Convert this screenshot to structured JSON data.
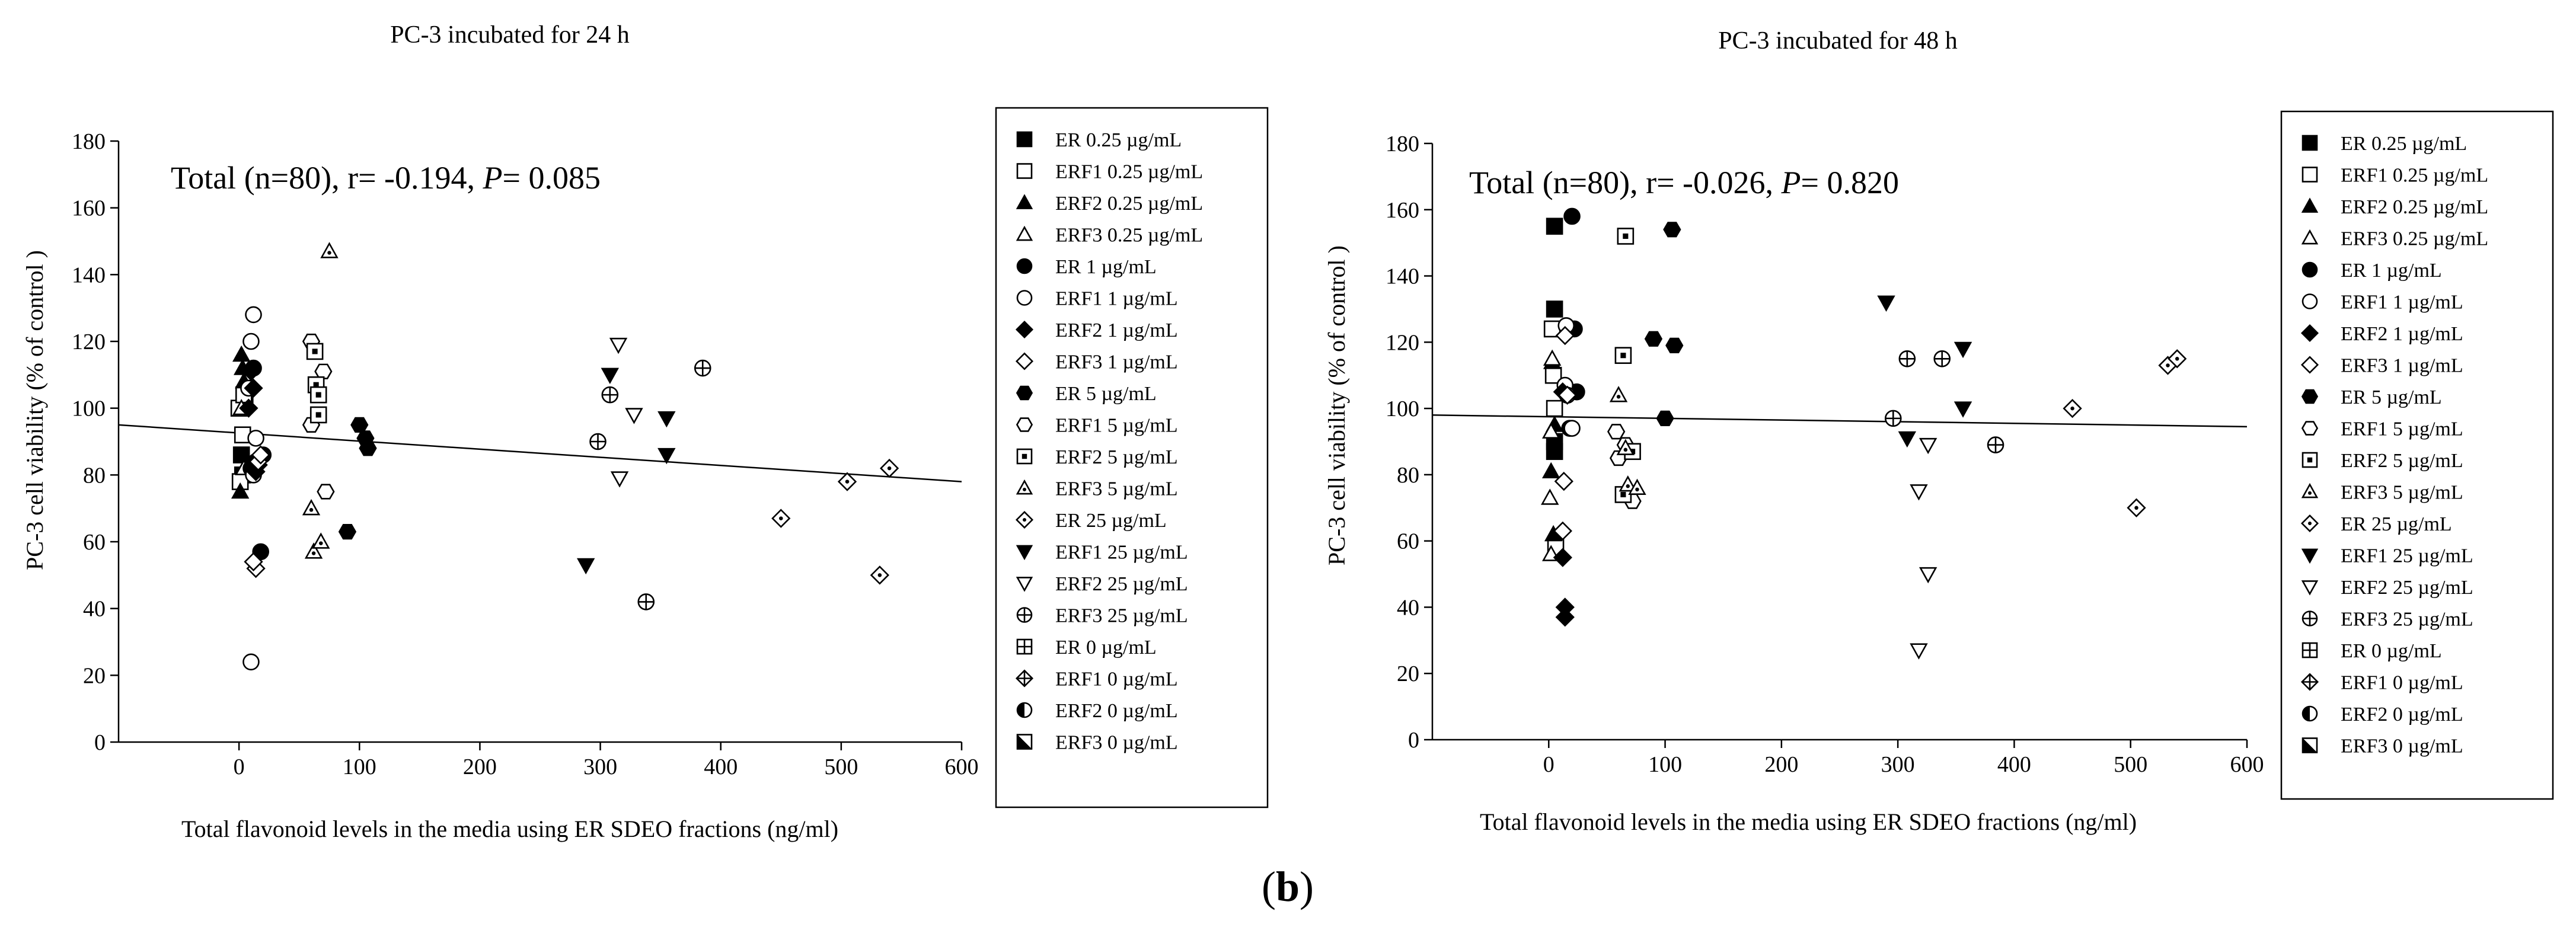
{
  "figure_label": "(b)",
  "figure_label_parts": {
    "open": "(",
    "letter": "b",
    "close": ")"
  },
  "legend_items": [
    {
      "label": "ER 0.25 µg/mL",
      "marker": "square",
      "fill": "filled"
    },
    {
      "label": "ERF1 0.25 µg/mL",
      "marker": "square",
      "fill": "open"
    },
    {
      "label": "ERF2 0.25 µg/mL",
      "marker": "triangle-up",
      "fill": "filled"
    },
    {
      "label": "ERF3 0.25 µg/mL",
      "marker": "triangle-up",
      "fill": "open"
    },
    {
      "label": "ER 1 µg/mL",
      "marker": "circle",
      "fill": "filled"
    },
    {
      "label": "ERF1 1 µg/mL",
      "marker": "circle",
      "fill": "open"
    },
    {
      "label": "ERF2 1 µg/mL",
      "marker": "diamond",
      "fill": "filled"
    },
    {
      "label": "ERF3 1 µg/mL",
      "marker": "diamond",
      "fill": "open"
    },
    {
      "label": "ER 5 µg/mL",
      "marker": "hexagon",
      "fill": "filled"
    },
    {
      "label": "ERF1 5 µg/mL",
      "marker": "hexagon",
      "fill": "open"
    },
    {
      "label": "ERF2 5 µg/mL",
      "marker": "square-dot",
      "fill": "open"
    },
    {
      "label": "ERF3 5 µg/mL",
      "marker": "triangle-dot",
      "fill": "open"
    },
    {
      "label": "ER 25 µg/mL",
      "marker": "diamond-dot",
      "fill": "open"
    },
    {
      "label": "ERF1 25 µg/mL",
      "marker": "triangle-down",
      "fill": "filled"
    },
    {
      "label": "ERF2 25 µg/mL",
      "marker": "triangle-down",
      "fill": "open"
    },
    {
      "label": "ERF3 25 µg/mL",
      "marker": "circle-plus",
      "fill": "open"
    },
    {
      "label": "ER 0 µg/mL",
      "marker": "square-plus",
      "fill": "open"
    },
    {
      "label": "ERF1 0 µg/mL",
      "marker": "diamond-plus",
      "fill": "open"
    },
    {
      "label": "ERF2 0 µg/mL",
      "marker": "circle-half",
      "fill": "half"
    },
    {
      "label": "ERF3 0 µg/mL",
      "marker": "square-half",
      "fill": "half"
    }
  ],
  "chart_data": [
    {
      "type": "scatter",
      "title": "PC-3 incubated for 24 h",
      "xlabel": "Total flavonoid levels in the media using ER SDEO fractions (ng/ml)",
      "ylabel": "PC-3 cell viability (% of control )",
      "xlim": [
        -100,
        600
      ],
      "ylim": [
        0,
        180
      ],
      "xticks": [
        0,
        100,
        200,
        300,
        400,
        500,
        600
      ],
      "yticks": [
        0,
        20,
        40,
        60,
        80,
        100,
        120,
        140,
        160,
        180
      ],
      "annotation": {
        "prefix": "Total (n=80), r= -0.194, ",
        "p_symbol": "P",
        "suffix": "= 0.085"
      },
      "regression": {
        "x": [
          -100,
          600
        ],
        "y": [
          95,
          78
        ]
      },
      "series": [
        {
          "name": "ER 0.25 µg/mL",
          "points": [
            [
              2,
              86
            ],
            [
              3,
              80
            ],
            [
              5,
              104
            ]
          ]
        },
        {
          "name": "ERF1 0.25 µg/mL",
          "points": [
            [
              0,
              100
            ],
            [
              3,
              92
            ],
            [
              1,
              78
            ],
            [
              4,
              104
            ]
          ]
        },
        {
          "name": "ERF2 0.25 µg/mL",
          "points": [
            [
              2,
              116
            ],
            [
              3,
              112
            ],
            [
              1,
              75
            ],
            [
              4,
              108
            ]
          ]
        },
        {
          "name": "ERF3 0.25 µg/mL",
          "points": [
            [
              2,
              100
            ],
            [
              4,
              82
            ]
          ]
        },
        {
          "name": "ER 1 µg/mL",
          "points": [
            [
              12,
              112
            ],
            [
              14,
              84
            ],
            [
              18,
              57
            ],
            [
              20,
              86
            ],
            [
              10,
              82
            ]
          ]
        },
        {
          "name": "ERF1 1 µg/mL",
          "points": [
            [
              12,
              128
            ],
            [
              10,
              120
            ],
            [
              8,
              106
            ],
            [
              14,
              91
            ],
            [
              12,
              80
            ],
            [
              10,
              24
            ]
          ]
        },
        {
          "name": "ERF2 1 µg/mL",
          "points": [
            [
              10,
              111
            ],
            [
              12,
              106
            ],
            [
              14,
              81
            ],
            [
              16,
              83
            ],
            [
              8,
              100
            ]
          ]
        },
        {
          "name": "ERF3 1 µg/mL",
          "points": [
            [
              14,
              52
            ],
            [
              12,
              54
            ],
            [
              16,
              84
            ],
            [
              18,
              86
            ]
          ]
        },
        {
          "name": "ER 5 µg/mL",
          "points": [
            [
              100,
              95
            ],
            [
              105,
              91
            ],
            [
              107,
              88
            ],
            [
              90,
              63
            ]
          ]
        },
        {
          "name": "ERF1 5 µg/mL",
          "points": [
            [
              60,
              120
            ],
            [
              60,
              95
            ],
            [
              70,
              111
            ],
            [
              72,
              75
            ]
          ]
        },
        {
          "name": "ERF2 5 µg/mL",
          "points": [
            [
              63,
              117
            ],
            [
              64,
              107
            ],
            [
              66,
              104
            ],
            [
              66,
              98
            ]
          ]
        },
        {
          "name": "ERF3 5 µg/mL",
          "points": [
            [
              75,
              147
            ],
            [
              60,
              70
            ],
            [
              62,
              57
            ],
            [
              68,
              60
            ]
          ]
        },
        {
          "name": "ER 25 µg/mL",
          "points": [
            [
              450,
              67
            ],
            [
              505,
              78
            ],
            [
              540,
              82
            ],
            [
              532,
              50
            ]
          ]
        },
        {
          "name": "ERF1 25 µg/mL",
          "points": [
            [
              308,
              110
            ],
            [
              355,
              97
            ],
            [
              355,
              86
            ],
            [
              288,
              53
            ]
          ]
        },
        {
          "name": "ERF2 25 µg/mL",
          "points": [
            [
              315,
              119
            ],
            [
              328,
              98
            ],
            [
              316,
              79
            ]
          ]
        },
        {
          "name": "ERF3 25 µg/mL",
          "points": [
            [
              385,
              112
            ],
            [
              308,
              104
            ],
            [
              298,
              90
            ],
            [
              338,
              42
            ]
          ]
        }
      ]
    },
    {
      "type": "scatter",
      "title": "PC-3 incubated for 48 h",
      "xlabel": "Total flavonoid levels in the media using ER SDEO fractions (ng/ml)",
      "ylabel": "PC-3 cell viability (% of control )",
      "xlim": [
        -100,
        600
      ],
      "ylim": [
        0,
        180
      ],
      "xticks": [
        0,
        100,
        200,
        300,
        400,
        500,
        600
      ],
      "yticks": [
        0,
        20,
        40,
        60,
        80,
        100,
        120,
        140,
        160,
        180
      ],
      "annotation": {
        "prefix": "Total (n=80), r= -0.026, ",
        "p_symbol": "P",
        "suffix": "= 0.820"
      },
      "regression": {
        "x": [
          -100,
          600
        ],
        "y": [
          98,
          94.5
        ]
      },
      "series": [
        {
          "name": "ER 0.25 µg/mL",
          "points": [
            [
              5,
              155
            ],
            [
              5,
              130
            ],
            [
              5,
              90
            ],
            [
              5,
              87
            ]
          ]
        },
        {
          "name": "ERF1 0.25 µg/mL",
          "points": [
            [
              3,
              124
            ],
            [
              4,
              110
            ],
            [
              5,
              100
            ],
            [
              6,
              58
            ]
          ]
        },
        {
          "name": "ERF2 0.25 µg/mL",
          "points": [
            [
              3,
              114
            ],
            [
              2,
              81
            ],
            [
              4,
              62
            ],
            [
              5,
              95
            ]
          ]
        },
        {
          "name": "ERF3 0.25 µg/mL",
          "points": [
            [
              3,
              115
            ],
            [
              2,
              93
            ],
            [
              1,
              73
            ],
            [
              2,
              56
            ]
          ]
        },
        {
          "name": "ER 1 µg/mL",
          "points": [
            [
              20,
              158
            ],
            [
              22,
              124
            ],
            [
              24,
              105
            ],
            [
              18,
              94
            ]
          ]
        },
        {
          "name": "ERF1 1 µg/mL",
          "points": [
            [
              15,
              125
            ],
            [
              14,
              107
            ],
            [
              16,
              104
            ],
            [
              20,
              94
            ]
          ]
        },
        {
          "name": "ERF2 1 µg/mL",
          "points": [
            [
              12,
              105
            ],
            [
              12,
              55
            ],
            [
              14,
              40
            ],
            [
              14,
              37
            ]
          ]
        },
        {
          "name": "ERF3 1 µg/mL",
          "points": [
            [
              14,
              122
            ],
            [
              16,
              104
            ],
            [
              13,
              78
            ],
            [
              12,
              63
            ]
          ]
        },
        {
          "name": "ER 5 µg/mL",
          "points": [
            [
              106,
              154
            ],
            [
              108,
              119
            ],
            [
              90,
              121
            ],
            [
              100,
              97
            ]
          ]
        },
        {
          "name": "ERF1 5 µg/mL",
          "points": [
            [
              58,
              93
            ],
            [
              60,
              85
            ],
            [
              66,
              89
            ],
            [
              72,
              72
            ]
          ]
        },
        {
          "name": "ERF2 5 µg/mL",
          "points": [
            [
              66,
              152
            ],
            [
              64,
              116
            ],
            [
              64,
              74
            ],
            [
              72,
              87
            ]
          ]
        },
        {
          "name": "ERF3 5 µg/mL",
          "points": [
            [
              60,
              104
            ],
            [
              66,
              88
            ],
            [
              68,
              77
            ],
            [
              76,
              76
            ]
          ]
        },
        {
          "name": "ER 25 µg/mL",
          "points": [
            [
              450,
              100
            ],
            [
              532,
              113
            ],
            [
              540,
              115
            ],
            [
              505,
              70
            ]
          ]
        },
        {
          "name": "ERF1 25 µg/mL",
          "points": [
            [
              290,
              132
            ],
            [
              356,
              118
            ],
            [
              356,
              100
            ],
            [
              308,
              91
            ]
          ]
        },
        {
          "name": "ERF2 25 µg/mL",
          "points": [
            [
              318,
              75
            ],
            [
              326,
              89
            ],
            [
              326,
              50
            ],
            [
              318,
              27
            ]
          ]
        },
        {
          "name": "ERF3 25 µg/mL",
          "points": [
            [
              308,
              115
            ],
            [
              338,
              115
            ],
            [
              296,
              97
            ],
            [
              384,
              89
            ]
          ]
        }
      ]
    }
  ]
}
